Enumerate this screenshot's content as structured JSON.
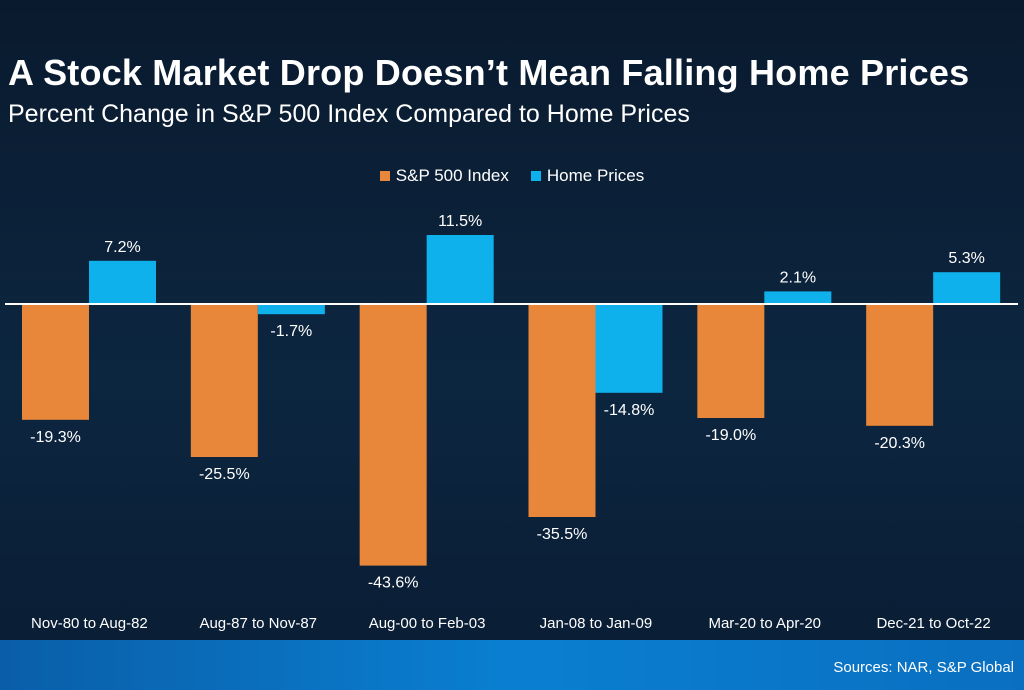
{
  "title": "A Stock Market Drop Doesn’t Mean Falling Home Prices",
  "subtitle": "Percent Change in S&P 500 Index Compared to Home Prices",
  "source": "Sources: NAR, S&P Global",
  "chart_data": {
    "type": "bar",
    "categories": [
      "Nov-80 to Aug-82",
      "Aug-87 to Nov-87",
      "Aug-00 to Feb-03",
      "Jan-08 to Jan-09",
      "Mar-20 to Apr-20",
      "Dec-21 to Oct-22"
    ],
    "series": [
      {
        "name": "S&P 500 Index",
        "color": "#e8873a",
        "values": [
          -19.3,
          -25.5,
          -43.6,
          -35.5,
          -19.0,
          -20.3
        ],
        "labels": [
          "-19.3%",
          "-25.5%",
          "-43.6%",
          "-35.5%",
          "-19.0%",
          "-20.3%"
        ]
      },
      {
        "name": "Home Prices",
        "color": "#0fb1ec",
        "values": [
          7.2,
          -1.7,
          11.5,
          -14.8,
          2.1,
          5.3
        ],
        "labels": [
          "7.2%",
          "-1.7%",
          "11.5%",
          "-14.8%",
          "2.1%",
          "5.3%"
        ]
      }
    ],
    "ylim": [
      -50,
      15
    ],
    "grid": false,
    "legend_position": "top-center",
    "baseline_color": "#ffffff"
  }
}
